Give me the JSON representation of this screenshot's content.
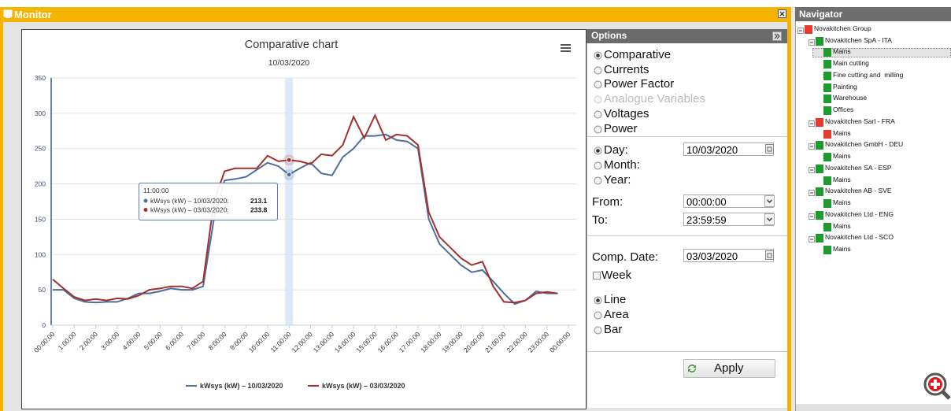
{
  "monitor": {
    "title": "Monitor"
  },
  "chart_data": {
    "type": "line",
    "title": "Comparative chart",
    "subtitle": "10/03/2020",
    "x": [
      0,
      0.5,
      1,
      1.5,
      2,
      2.5,
      3,
      3.5,
      4,
      4.5,
      5,
      5.5,
      6,
      6.5,
      7,
      7.5,
      8,
      8.5,
      9,
      9.5,
      10,
      10.5,
      11,
      11.5,
      12,
      12.5,
      13,
      13.5,
      14,
      14.5,
      15,
      15.5,
      16,
      16.5,
      17,
      17.5,
      18,
      18.5,
      19,
      19.5,
      20,
      20.5,
      21,
      21.5,
      22,
      22.5,
      23,
      23.5
    ],
    "xlim": [
      0,
      24
    ],
    "xticks": [
      {
        "value": 0,
        "label": "00:00:00"
      },
      {
        "value": 1,
        "label": "1:00:00"
      },
      {
        "value": 2,
        "label": "2:00:00"
      },
      {
        "value": 3,
        "label": "3:00:00"
      },
      {
        "value": 4,
        "label": "4:00:00"
      },
      {
        "value": 5,
        "label": "5:00:00"
      },
      {
        "value": 6,
        "label": "6:00:00"
      },
      {
        "value": 7,
        "label": "7:00:00"
      },
      {
        "value": 8,
        "label": "8:00:00"
      },
      {
        "value": 9,
        "label": "9:00:00"
      },
      {
        "value": 10,
        "label": "10:00:00"
      },
      {
        "value": 11,
        "label": "11:00:00"
      },
      {
        "value": 12,
        "label": "12:00:00"
      },
      {
        "value": 13,
        "label": "13:00:00"
      },
      {
        "value": 14,
        "label": "14:00:00"
      },
      {
        "value": 15,
        "label": "15:00:00"
      },
      {
        "value": 16,
        "label": "16:00:00"
      },
      {
        "value": 17,
        "label": "17:00:00"
      },
      {
        "value": 18,
        "label": "18:00:00"
      },
      {
        "value": 19,
        "label": "19:00:00"
      },
      {
        "value": 20,
        "label": "20:00:00"
      },
      {
        "value": 21,
        "label": "21:00:00"
      },
      {
        "value": 22,
        "label": "22:00:00"
      },
      {
        "value": 23,
        "label": "23:00:00"
      },
      {
        "value": 24,
        "label": "00:00:00"
      }
    ],
    "ylim": [
      0,
      350
    ],
    "yticks": [
      0,
      50,
      100,
      150,
      200,
      250,
      300,
      350
    ],
    "grid": true,
    "legend": "bottom",
    "series": [
      {
        "name": "kWsys (kW) – 10/03/2020",
        "color": "#4a6f9e",
        "values": [
          50,
          50,
          38,
          33,
          32,
          33,
          33,
          38,
          45,
          45,
          48,
          52,
          50,
          50,
          55,
          150,
          205,
          207,
          210,
          220,
          230,
          225,
          213.1,
          222,
          230,
          215,
          212,
          238,
          250,
          268,
          268,
          270,
          262,
          260,
          250,
          150,
          115,
          100,
          85,
          75,
          78,
          62,
          45,
          30,
          35,
          48,
          45,
          45
        ]
      },
      {
        "name": "kWsys (kW) – 03/03/2020",
        "color": "#a3302e",
        "values": [
          65,
          52,
          40,
          35,
          37,
          35,
          38,
          37,
          42,
          50,
          52,
          55,
          55,
          52,
          62,
          175,
          218,
          222,
          222,
          222,
          240,
          232,
          233.8,
          232,
          228,
          242,
          240,
          255,
          295,
          265,
          297,
          262,
          270,
          268,
          255,
          160,
          125,
          110,
          95,
          85,
          90,
          55,
          33,
          32,
          35,
          45,
          47,
          45
        ]
      }
    ],
    "tooltip": {
      "x_label": "11:00:00",
      "index": 22,
      "labels": [
        "kWsys (kW) – 10/03/2020:",
        "kWsys (kW) – 03/03/2020:"
      ]
    }
  },
  "options": {
    "title": "Options",
    "chart_kinds": [
      {
        "label": "Comparative",
        "selected": true
      },
      {
        "label": "Currents"
      },
      {
        "label": "Power Factor"
      },
      {
        "label": "Analogue Variables",
        "disabled": true
      },
      {
        "label": "Voltages"
      },
      {
        "label": "Power"
      }
    ],
    "periods": [
      {
        "label": "Day:",
        "selected": true
      },
      {
        "label": "Month:"
      },
      {
        "label": "Year:"
      }
    ],
    "date": "10/03/2020",
    "from_label": "From:",
    "from": "00:00:00",
    "to_label": "To:",
    "to": "23:59:59",
    "comp_date_label": "Comp. Date:",
    "comp_date": "03/03/2020",
    "week": {
      "label": "Week",
      "checked": false
    },
    "styles": [
      {
        "label": "Line",
        "selected": true
      },
      {
        "label": "Area"
      },
      {
        "label": "Bar"
      }
    ],
    "apply": "Apply"
  },
  "navigator": {
    "title": "Navigator",
    "nodes": [
      {
        "label": "Novakitchen Group",
        "level": 0,
        "color": "#e53b2c"
      },
      {
        "label": "Novakitchen SpA - ITA",
        "level": 1,
        "color": "#1f9a2e"
      },
      {
        "label": "Mains",
        "level": 2,
        "color": "#1f9a2e",
        "selected": true
      },
      {
        "label": "Main cutting",
        "level": 2,
        "color": "#1f9a2e"
      },
      {
        "label": "Fine cutting and  milling",
        "level": 2,
        "color": "#1f9a2e"
      },
      {
        "label": "Painting",
        "level": 2,
        "color": "#1f9a2e"
      },
      {
        "label": "Warehouse",
        "level": 2,
        "color": "#1f9a2e"
      },
      {
        "label": "Offices",
        "level": 2,
        "color": "#1f9a2e"
      },
      {
        "label": "Novakitchen Sarl - FRA",
        "level": 1,
        "color": "#e53b2c"
      },
      {
        "label": "Mains",
        "level": 2,
        "color": "#e53b2c"
      },
      {
        "label": "Novakitchen GmbH - DEU",
        "level": 1,
        "color": "#1f9a2e"
      },
      {
        "label": "Mains",
        "level": 2,
        "color": "#1f9a2e"
      },
      {
        "label": "Novakitchen SA - ESP",
        "level": 1,
        "color": "#1f9a2e"
      },
      {
        "label": "Mains",
        "level": 2,
        "color": "#1f9a2e"
      },
      {
        "label": "Novakitchen AB - SVE",
        "level": 1,
        "color": "#1f9a2e"
      },
      {
        "label": "Mains",
        "level": 2,
        "color": "#1f9a2e"
      },
      {
        "label": "Novakitchen Ltd - ENG",
        "level": 1,
        "color": "#1f9a2e"
      },
      {
        "label": "Mains",
        "level": 2,
        "color": "#1f9a2e"
      },
      {
        "label": "Novakitchen Ltd - SCO",
        "level": 1,
        "color": "#1f9a2e"
      },
      {
        "label": "Mains",
        "level": 2,
        "color": "#1f9a2e"
      }
    ]
  }
}
